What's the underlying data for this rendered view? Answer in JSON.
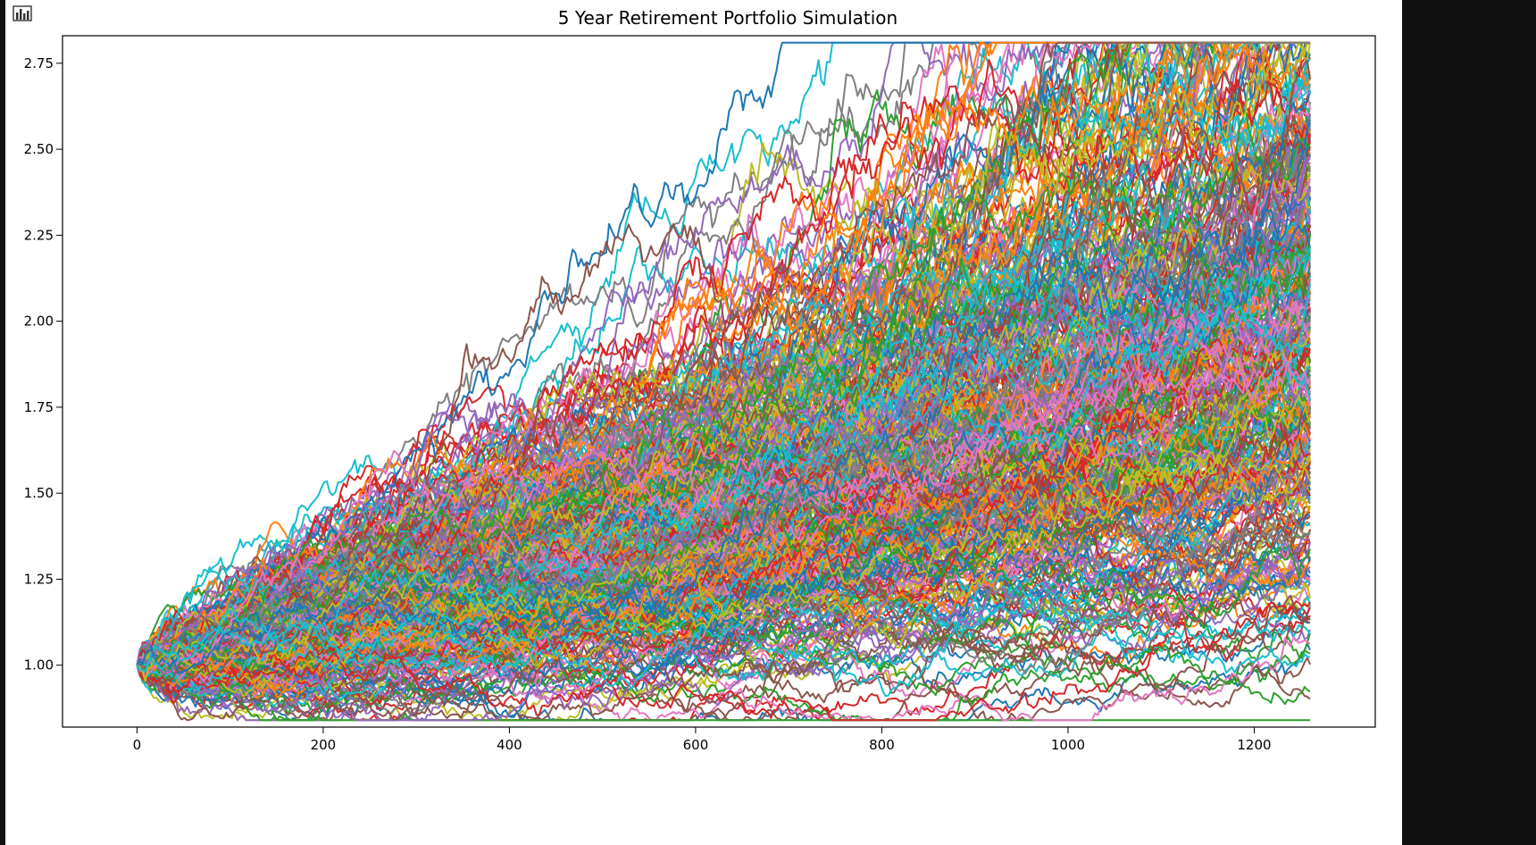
{
  "chart_data": {
    "type": "line",
    "title": "5 Year Retirement Portfolio Simulation",
    "xlabel": "",
    "ylabel": "",
    "xlim": [
      -80,
      1330
    ],
    "ylim": [
      0.82,
      2.83
    ],
    "xticks": [
      0,
      200,
      400,
      600,
      800,
      1000,
      1200
    ],
    "xtick_labels": [
      "0",
      "200",
      "400",
      "600",
      "800",
      "1000",
      "1200"
    ],
    "yticks": [
      1.0,
      1.25,
      1.5,
      1.75,
      2.0,
      2.25,
      2.5,
      2.75
    ],
    "ytick_labels": [
      "1.00",
      "1.25",
      "1.50",
      "1.75",
      "2.00",
      "2.25",
      "2.50",
      "2.75"
    ],
    "grid": false,
    "legend": "none",
    "trading_days": 1260,
    "start_value": 1.0,
    "end_value_range": [
      1.37,
      2.77
    ],
    "highlighted_series": [
      {
        "name_hint": "top",
        "color": "#1f77b4",
        "end": 2.77,
        "peak": 2.77
      },
      {
        "name_hint": "bottom",
        "color": "#17becf",
        "end": 1.37,
        "trough": 0.93
      }
    ],
    "colors": [
      "#1f77b4",
      "#ff7f0e",
      "#2ca02c",
      "#d62728",
      "#9467bd",
      "#8c564b",
      "#e377c2",
      "#7f7f7f",
      "#bcbd22",
      "#17becf"
    ]
  }
}
